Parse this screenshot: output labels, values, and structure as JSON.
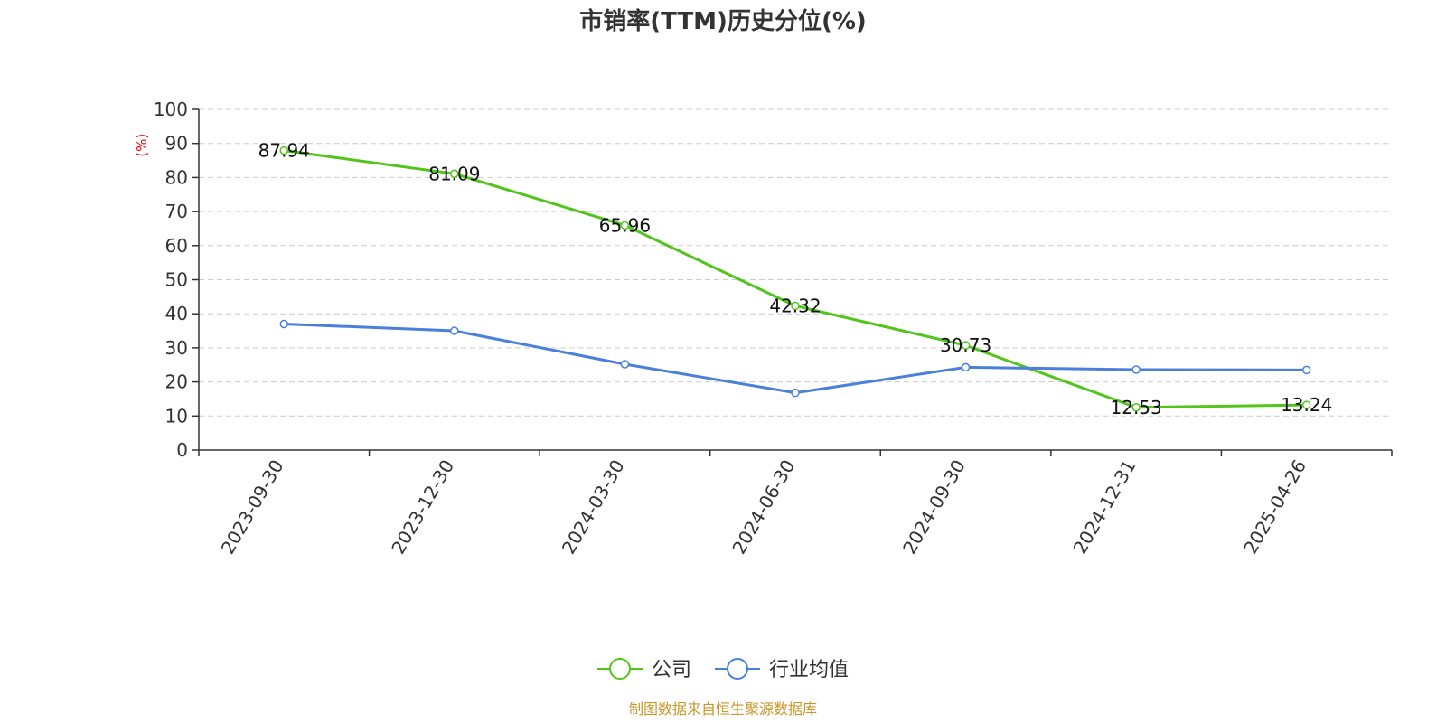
{
  "chart_data": {
    "type": "line",
    "title": "市销率(TTM)历史分位(%)",
    "ylabel": "(%)",
    "categories": [
      "2023-09-30",
      "2023-12-30",
      "2024-03-30",
      "2024-06-30",
      "2024-09-30",
      "2024-12-31",
      "2025-04-26"
    ],
    "ylim": [
      0,
      100
    ],
    "yticks": [
      0,
      10,
      20,
      30,
      40,
      50,
      60,
      70,
      80,
      90,
      100
    ],
    "grid": true,
    "legend_position": "bottom-center",
    "series": [
      {
        "name": "公司",
        "color": "#52c41a",
        "values": [
          87.94,
          81.09,
          65.96,
          42.32,
          30.73,
          12.53,
          13.24
        ],
        "labels": [
          "87.94",
          "81.09",
          "65.96",
          "42.32",
          "30.73",
          "12.53",
          "13.24"
        ],
        "show_labels": true
      },
      {
        "name": "行业均值",
        "color": "#4a7fdc",
        "values": [
          37.0,
          35.0,
          25.2,
          16.8,
          24.3,
          23.6,
          23.5
        ],
        "show_labels": false
      }
    ]
  },
  "source": {
    "text": "制图数据来自恒生聚源数据库",
    "color": "#c8962a"
  }
}
